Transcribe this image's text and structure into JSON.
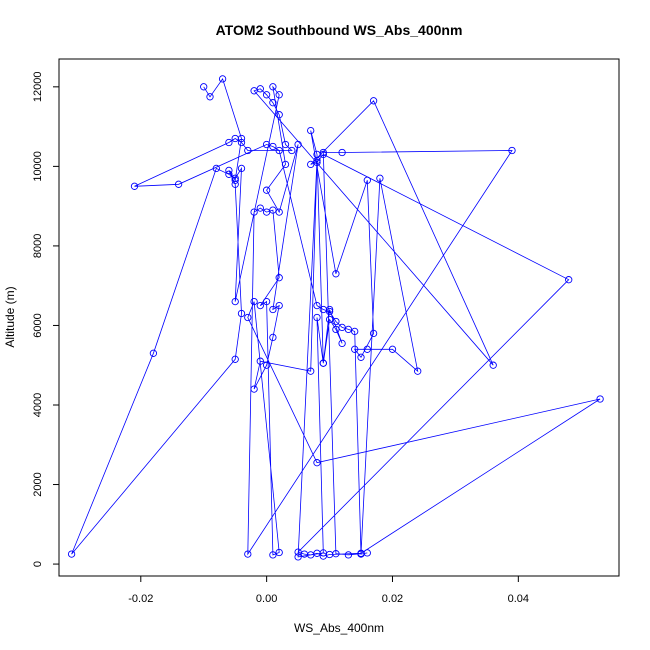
{
  "chart_data": {
    "type": "line",
    "title": "ATOM2 Southbound WS_Abs_400nm",
    "xlabel": "WS_Abs_400nm",
    "ylabel": "Altitude (m)",
    "xlim": [
      -0.033,
      0.056
    ],
    "ylim": [
      -300,
      12700
    ],
    "x_ticks": [
      -0.02,
      0.0,
      0.02,
      0.04
    ],
    "x_tick_labels": [
      "-0.02",
      "0.00",
      "0.02",
      "0.04"
    ],
    "y_ticks": [
      0,
      2000,
      4000,
      6000,
      8000,
      10000,
      12000
    ],
    "y_tick_labels": [
      "0",
      "2000",
      "4000",
      "6000",
      "8000",
      "10000",
      "12000"
    ],
    "grid": false,
    "markers": "open-circle",
    "series_color": "#0000ff",
    "series": [
      {
        "x": [
          -0.01,
          -0.009,
          -0.007,
          -0.004,
          -0.005,
          -0.006,
          -0.005,
          -0.004,
          -0.005,
          -0.031,
          -0.018,
          -0.008,
          -0.006,
          -0.005,
          -0.004,
          -0.005,
          0.002,
          0.001,
          0.003,
          0.0,
          0.002,
          0.005,
          0.001,
          0.002,
          0.001,
          0.0,
          -0.002,
          -0.001,
          0.007,
          0.008,
          0.005,
          0.009,
          0.008,
          0.009,
          0.01,
          0.011,
          0.012,
          0.01,
          0.009,
          0.008,
          0.007,
          0.011,
          0.016,
          0.017,
          0.015,
          0.014,
          0.016,
          0.02,
          0.024,
          0.018,
          0.015,
          0.013,
          0.011,
          0.009,
          0.012,
          0.039,
          -0.003,
          -0.002,
          -0.001,
          0.0,
          0.001,
          0.002,
          -0.001,
          0.0,
          0.001,
          0.002,
          -0.002,
          -0.003,
          0.008,
          0.053,
          0.015,
          0.01,
          0.009,
          0.008,
          0.007,
          0.006,
          0.005,
          0.048,
          0.009,
          0.008,
          0.007,
          0.017,
          0.036,
          -0.002,
          -0.001,
          0.0,
          0.001,
          0.002,
          0.003,
          0.004,
          -0.003,
          -0.004,
          -0.005,
          -0.006,
          -0.021,
          -0.014,
          0.0,
          0.001,
          0.002,
          0.008,
          0.009,
          0.01,
          0.011,
          0.012,
          0.013,
          0.014,
          0.015,
          0.016
        ],
        "y": [
          12000,
          11750,
          12200,
          10700,
          9650,
          9900,
          9550,
          6300,
          5150,
          250,
          5300,
          9950,
          9800,
          9700,
          9950,
          6600,
          11800,
          12000,
          10050,
          9400,
          8850,
          10550,
          6400,
          6500,
          5700,
          5000,
          4400,
          5100,
          4850,
          10150,
          180,
          280,
          6200,
          5050,
          6150,
          5900,
          5550,
          6400,
          5050,
          10300,
          10900,
          7300,
          9650,
          5800,
          5200,
          5400,
          5400,
          5400,
          4850,
          9700,
          260,
          230,
          260,
          10350,
          10350,
          10400,
          250,
          8850,
          8950,
          8850,
          8900,
          7200,
          6500,
          6600,
          230,
          290,
          6600,
          6200,
          2550,
          4150,
          270,
          240,
          200,
          270,
          230,
          250,
          300,
          7150,
          10300,
          10100,
          10050,
          11650,
          5000,
          11900,
          11950,
          11800,
          11600,
          11300,
          10550,
          10400,
          10400,
          10600,
          10700,
          10600,
          9500,
          9550,
          10550,
          10500,
          10400,
          6500,
          6400,
          6350,
          6100,
          5950,
          5900,
          5850,
          250,
          280
        ]
      }
    ]
  }
}
